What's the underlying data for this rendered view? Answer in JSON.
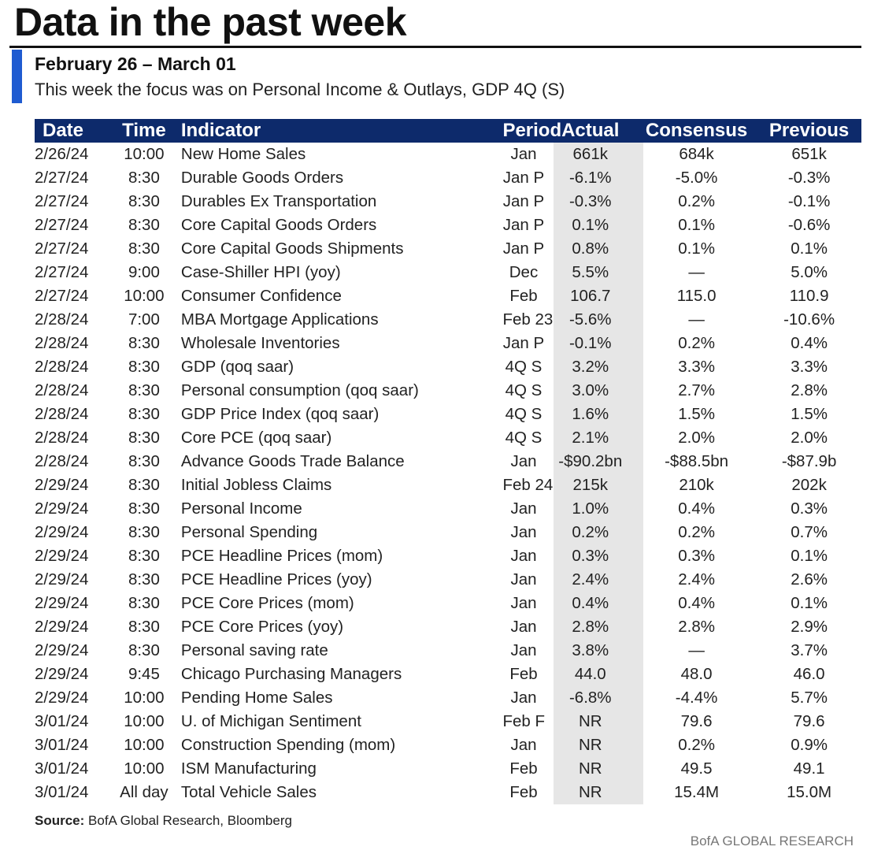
{
  "title": "Data in the past week",
  "period": "February 26 – March 01",
  "focus": "This week the focus was on Personal Income & Outlays, GDP 4Q (S)",
  "table": {
    "headers": {
      "date": "Date",
      "time": "Time",
      "indicator": "Indicator",
      "period": "Period",
      "actual": "Actual",
      "consensus": "Consensus",
      "previous": "Previous"
    },
    "rows": [
      {
        "date": "2/26/24",
        "time": "10:00",
        "indicator": "New Home Sales",
        "period": "Jan",
        "actual": "661k",
        "consensus": "684k",
        "previous": "651k"
      },
      {
        "date": "2/27/24",
        "time": "8:30",
        "indicator": "Durable Goods Orders",
        "period": "Jan P",
        "actual": "-6.1%",
        "consensus": "-5.0%",
        "previous": "-0.3%"
      },
      {
        "date": "2/27/24",
        "time": "8:30",
        "indicator": "Durables Ex Transportation",
        "period": "Jan P",
        "actual": "-0.3%",
        "consensus": "0.2%",
        "previous": "-0.1%"
      },
      {
        "date": "2/27/24",
        "time": "8:30",
        "indicator": "Core Capital Goods Orders",
        "period": "Jan P",
        "actual": "0.1%",
        "consensus": "0.1%",
        "previous": "-0.6%"
      },
      {
        "date": "2/27/24",
        "time": "8:30",
        "indicator": "Core Capital Goods Shipments",
        "period": "Jan P",
        "actual": "0.8%",
        "consensus": "0.1%",
        "previous": "0.1%"
      },
      {
        "date": "2/27/24",
        "time": "9:00",
        "indicator": "Case-Shiller HPI (yoy)",
        "period": "Dec",
        "actual": "5.5%",
        "consensus": "—",
        "previous": "5.0%"
      },
      {
        "date": "2/27/24",
        "time": "10:00",
        "indicator": "Consumer Confidence",
        "period": "Feb",
        "actual": "106.7",
        "consensus": "115.0",
        "previous": "110.9"
      },
      {
        "date": "2/28/24",
        "time": "7:00",
        "indicator": "MBA Mortgage Applications",
        "period": "Feb 23",
        "actual": "-5.6%",
        "consensus": "—",
        "previous": "-10.6%"
      },
      {
        "date": "2/28/24",
        "time": "8:30",
        "indicator": "Wholesale Inventories",
        "period": "Jan P",
        "actual": "-0.1%",
        "consensus": "0.2%",
        "previous": "0.4%"
      },
      {
        "date": "2/28/24",
        "time": "8:30",
        "indicator": "GDP (qoq saar)",
        "period": "4Q S",
        "actual": "3.2%",
        "consensus": "3.3%",
        "previous": "3.3%"
      },
      {
        "date": "2/28/24",
        "time": "8:30",
        "indicator": "Personal consumption (qoq saar)",
        "period": "4Q S",
        "actual": "3.0%",
        "consensus": "2.7%",
        "previous": "2.8%"
      },
      {
        "date": "2/28/24",
        "time": "8:30",
        "indicator": "GDP Price Index (qoq saar)",
        "period": "4Q S",
        "actual": "1.6%",
        "consensus": "1.5%",
        "previous": "1.5%"
      },
      {
        "date": "2/28/24",
        "time": "8:30",
        "indicator": "Core PCE (qoq saar)",
        "period": "4Q S",
        "actual": "2.1%",
        "consensus": "2.0%",
        "previous": "2.0%"
      },
      {
        "date": "2/28/24",
        "time": "8:30",
        "indicator": "Advance Goods Trade Balance",
        "period": "Jan",
        "actual": "-$90.2bn",
        "consensus": "-$88.5bn",
        "previous": "-$87.9b"
      },
      {
        "date": "2/29/24",
        "time": "8:30",
        "indicator": "Initial Jobless Claims",
        "period": "Feb 24",
        "actual": "215k",
        "consensus": "210k",
        "previous": "202k"
      },
      {
        "date": "2/29/24",
        "time": "8:30",
        "indicator": "Personal Income",
        "period": "Jan",
        "actual": "1.0%",
        "consensus": "0.4%",
        "previous": "0.3%"
      },
      {
        "date": "2/29/24",
        "time": "8:30",
        "indicator": "Personal Spending",
        "period": "Jan",
        "actual": "0.2%",
        "consensus": "0.2%",
        "previous": "0.7%"
      },
      {
        "date": "2/29/24",
        "time": "8:30",
        "indicator": "PCE Headline Prices (mom)",
        "period": "Jan",
        "actual": "0.3%",
        "consensus": "0.3%",
        "previous": "0.1%"
      },
      {
        "date": "2/29/24",
        "time": "8:30",
        "indicator": "PCE Headline Prices (yoy)",
        "period": "Jan",
        "actual": "2.4%",
        "consensus": "2.4%",
        "previous": "2.6%"
      },
      {
        "date": "2/29/24",
        "time": "8:30",
        "indicator": "PCE Core Prices (mom)",
        "period": "Jan",
        "actual": "0.4%",
        "consensus": "0.4%",
        "previous": "0.1%"
      },
      {
        "date": "2/29/24",
        "time": "8:30",
        "indicator": "PCE Core Prices (yoy)",
        "period": "Jan",
        "actual": "2.8%",
        "consensus": "2.8%",
        "previous": "2.9%"
      },
      {
        "date": "2/29/24",
        "time": "8:30",
        "indicator": "Personal saving rate",
        "period": "Jan",
        "actual": "3.8%",
        "consensus": "—",
        "previous": "3.7%"
      },
      {
        "date": "2/29/24",
        "time": "9:45",
        "indicator": "Chicago Purchasing Managers",
        "period": "Feb",
        "actual": "44.0",
        "consensus": "48.0",
        "previous": "46.0"
      },
      {
        "date": "2/29/24",
        "time": "10:00",
        "indicator": "Pending Home Sales",
        "period": "Jan",
        "actual": "-6.8%",
        "consensus": "-4.4%",
        "previous": "5.7%"
      },
      {
        "date": "3/01/24",
        "time": "10:00",
        "indicator": "U. of Michigan Sentiment",
        "period": "Feb F",
        "actual": "NR",
        "consensus": "79.6",
        "previous": "79.6"
      },
      {
        "date": "3/01/24",
        "time": "10:00",
        "indicator": "Construction Spending (mom)",
        "period": "Jan",
        "actual": "NR",
        "consensus": "0.2%",
        "previous": "0.9%"
      },
      {
        "date": "3/01/24",
        "time": "10:00",
        "indicator": "ISM Manufacturing",
        "period": "Feb",
        "actual": "NR",
        "consensus": "49.5",
        "previous": "49.1"
      },
      {
        "date": "3/01/24",
        "time": "All day",
        "indicator": "Total Vehicle Sales",
        "period": "Feb",
        "actual": "NR",
        "consensus": "15.4M",
        "previous": "15.0M"
      }
    ]
  },
  "source": {
    "label": "Source:",
    "text": " BofA Global Research, Bloomberg"
  },
  "brand": "BofA GLOBAL RESEARCH",
  "colors": {
    "header_bg": "#0d2a6b",
    "accent_bar": "#1f5bd1",
    "actual_shade": "#e6e6e6"
  }
}
